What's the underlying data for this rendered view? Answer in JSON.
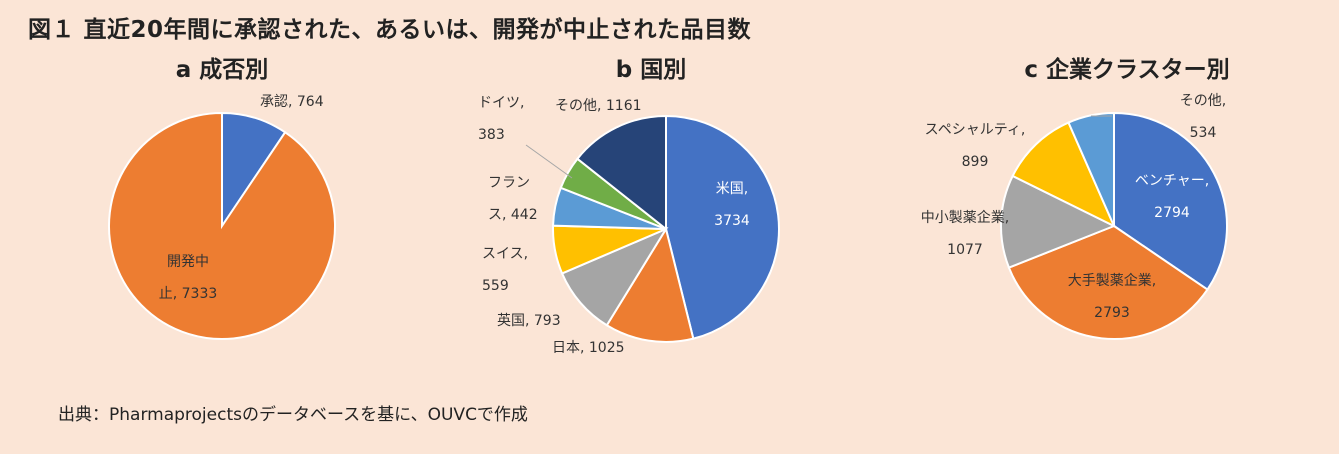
{
  "title": "図１ 直近20年間に承認された、あるいは、開発が中止された品目数",
  "source": "出典：Pharmaprojectsのデータベースを基に、OUVCで作成",
  "colors": {
    "blue": "#4472c4",
    "orange": "#ed7d31",
    "gray": "#a5a5a5",
    "yellow": "#ffc000",
    "lightblue": "#5b9bd5",
    "green": "#70ad47",
    "navy": "#264478",
    "background": "#fbe5d6"
  },
  "chart_data": [
    {
      "type": "pie",
      "title": "a 成否別",
      "slices": [
        {
          "name": "承認",
          "value": 764,
          "color": "#4472c4",
          "label": [
            "承認, 764"
          ]
        },
        {
          "name": "開発中止",
          "value": 7333,
          "color": "#ed7d31",
          "label": [
            "開発中",
            "止, 7333"
          ]
        }
      ]
    },
    {
      "type": "pie",
      "title": "b 国別",
      "slices": [
        {
          "name": "米国",
          "value": 3734,
          "color": "#4472c4",
          "label": [
            "米国,",
            "3734"
          ]
        },
        {
          "name": "日本",
          "value": 1025,
          "color": "#ed7d31",
          "label": [
            "日本, 1025"
          ]
        },
        {
          "name": "英国",
          "value": 793,
          "color": "#a5a5a5",
          "label": [
            "英国, 793"
          ]
        },
        {
          "name": "スイス",
          "value": 559,
          "color": "#ffc000",
          "label": [
            "スイス,",
            "559"
          ]
        },
        {
          "name": "フランス",
          "value": 442,
          "color": "#5b9bd5",
          "label": [
            "フラン",
            "ス, 442"
          ]
        },
        {
          "name": "ドイツ",
          "value": 383,
          "color": "#70ad47",
          "label": [
            "ドイツ,",
            "383"
          ]
        },
        {
          "name": "その他",
          "value": 1161,
          "color": "#264478",
          "label": [
            "その他, 1161"
          ]
        }
      ]
    },
    {
      "type": "pie",
      "title": "c 企業クラスター別",
      "slices": [
        {
          "name": "ベンチャー",
          "value": 2794,
          "color": "#4472c4",
          "label": [
            "ベンチャー,",
            "2794"
          ]
        },
        {
          "name": "大手製薬企業",
          "value": 2793,
          "color": "#ed7d31",
          "label": [
            "大手製薬企業,",
            "2793"
          ]
        },
        {
          "name": "中小製薬企業",
          "value": 1077,
          "color": "#a5a5a5",
          "label": [
            "中小製薬企業,",
            "1077"
          ]
        },
        {
          "name": "スペシャルティ",
          "value": 899,
          "color": "#ffc000",
          "label": [
            "スペシャルティ,",
            "899"
          ]
        },
        {
          "name": "その他",
          "value": 534,
          "color": "#5b9bd5",
          "label": [
            "その他,",
            "534"
          ]
        }
      ]
    }
  ]
}
